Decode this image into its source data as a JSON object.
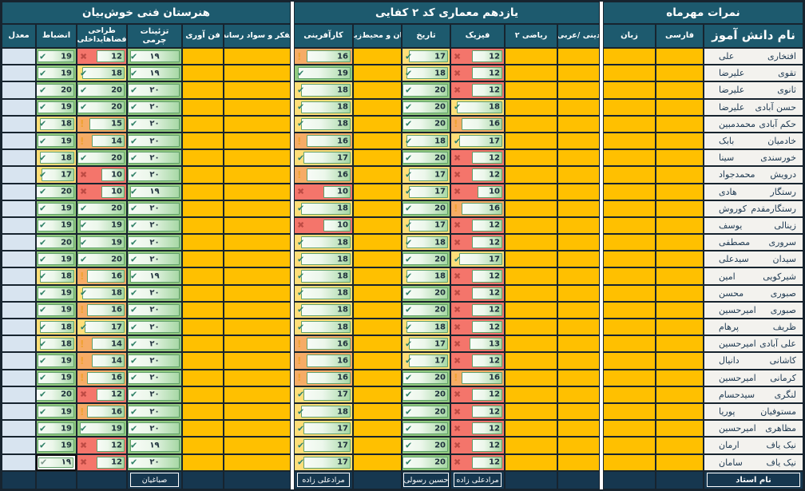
{
  "groups": {
    "right": "نمرات مهرماه",
    "middle": "یازدهم معماری کد ۲ کفایی",
    "left": "هنرستان فنی خوش‌بیان"
  },
  "columns": {
    "name": "نام دانش آموز",
    "farsi": "فارسی",
    "zaban": "زبان",
    "dini": "دینی /عربی",
    "riazi": "ریاضی ۲",
    "physics": "فیزیک",
    "tarikh": "تاریخ",
    "ensan": "انسان و محیط‌زیست",
    "karafarini": "کارآفرینی",
    "tafakor": "تفکر و سواد رسانه",
    "fanavari": "فن آوری",
    "taziinat": "تزئینات چرمی",
    "tarahi": "طراحی فضاهایداخلی",
    "enzebat": "انضباط",
    "moadel": "معدل"
  },
  "footer": {
    "name_label": "نام استاد",
    "teachers": {
      "taziinat": "صباغیان",
      "karafarini": "مرادعلی زاده",
      "tarikh": "حسین رسولی",
      "physics": "مرادعلی زاده"
    }
  },
  "icons": {
    "check": "✔",
    "warning": "!",
    "cross": "✖"
  },
  "colors": {
    "header_teal": "#1D5A6E",
    "grid_dark": "#17242F",
    "empty_subject_orange": "#FFC000",
    "band_green": "#92C97E",
    "band_yellow": "#FFDE78",
    "band_orange": "#F6AC66",
    "band_red": "#F4756B",
    "moadel_blue": "#D8E4F0"
  },
  "score_scale_max": 20,
  "selected_cell": {
    "row_index": 24,
    "column": "enzebat",
    "display": "۱۹"
  },
  "students": [
    {
      "family": "افتخاری",
      "given": "علی",
      "scores": {
        "enzebat": 19,
        "tarahi": 12,
        "taziinat": 19,
        "karafarini": 16,
        "tarikh": 17,
        "physics": 12
      }
    },
    {
      "family": "تقوی",
      "given": "علیرضا",
      "scores": {
        "enzebat": 19,
        "tarahi": 18,
        "taziinat": 19,
        "karafarini": 19,
        "tarikh": 18,
        "physics": 12
      }
    },
    {
      "family": "ثانوی",
      "given": "علیرضا",
      "scores": {
        "enzebat": 20,
        "tarahi": 20,
        "taziinat": 20,
        "karafarini": 18,
        "tarikh": 20,
        "physics": 12
      }
    },
    {
      "family": "حسن آبادی",
      "given": "علیرضا",
      "scores": {
        "enzebat": 19,
        "tarahi": 20,
        "taziinat": 20,
        "karafarini": 18,
        "tarikh": 20,
        "physics": 18
      }
    },
    {
      "family": "حکم آبادی",
      "given": "محمدمبین",
      "scores": {
        "enzebat": 18,
        "tarahi": 15,
        "taziinat": 20,
        "karafarini": 18,
        "tarikh": 20,
        "physics": 16
      }
    },
    {
      "family": "خادمیان",
      "given": "بابک",
      "scores": {
        "enzebat": 19,
        "tarahi": 14,
        "taziinat": 20,
        "karafarini": 16,
        "tarikh": 18,
        "physics": 17
      }
    },
    {
      "family": "خورسندی",
      "given": "سینا",
      "scores": {
        "enzebat": 18,
        "tarahi": 20,
        "taziinat": 20,
        "karafarini": 17,
        "tarikh": 20,
        "physics": 12
      }
    },
    {
      "family": "درویش",
      "given": "محمدجواد",
      "scores": {
        "enzebat": 17,
        "tarahi": 10,
        "taziinat": 20,
        "karafarini": 16,
        "tarikh": 17,
        "physics": 12
      }
    },
    {
      "family": "رستگار",
      "given": "هادی",
      "scores": {
        "enzebat": 20,
        "tarahi": 10,
        "taziinat": 19,
        "karafarini": 10,
        "tarikh": 17,
        "physics": 10
      }
    },
    {
      "family": "رستگارمقدم",
      "given": "کوروش",
      "scores": {
        "enzebat": 19,
        "tarahi": 20,
        "taziinat": 20,
        "karafarini": 18,
        "tarikh": 20,
        "physics": 16
      }
    },
    {
      "family": "زینالی",
      "given": "یوسف",
      "scores": {
        "enzebat": 19,
        "tarahi": 19,
        "taziinat": 20,
        "karafarini": 10,
        "tarikh": 17,
        "physics": 12
      }
    },
    {
      "family": "سروری",
      "given": "مصطفی",
      "scores": {
        "enzebat": 20,
        "tarahi": 19,
        "taziinat": 20,
        "karafarini": 18,
        "tarikh": 18,
        "physics": 12
      }
    },
    {
      "family": "سیدان",
      "given": "سیدعلی",
      "scores": {
        "enzebat": 19,
        "tarahi": 20,
        "taziinat": 20,
        "karafarini": 18,
        "tarikh": 20,
        "physics": 17
      }
    },
    {
      "family": "شیرکویی",
      "given": "امین",
      "scores": {
        "enzebat": 18,
        "tarahi": 16,
        "taziinat": 19,
        "karafarini": 18,
        "tarikh": 18,
        "physics": 12
      }
    },
    {
      "family": "صبوری",
      "given": "محسن",
      "scores": {
        "enzebat": 19,
        "tarahi": 18,
        "taziinat": 20,
        "karafarini": 18,
        "tarikh": 20,
        "physics": 12
      }
    },
    {
      "family": "صبوری",
      "given": "امیرحسین",
      "scores": {
        "enzebat": 19,
        "tarahi": 16,
        "taziinat": 20,
        "karafarini": 18,
        "tarikh": 20,
        "physics": 12
      }
    },
    {
      "family": "ظریف",
      "given": "پرهام",
      "scores": {
        "enzebat": 18,
        "tarahi": 17,
        "taziinat": 20,
        "karafarini": 18,
        "tarikh": 18,
        "physics": 12
      }
    },
    {
      "family": "علی آبادی",
      "given": "امیرحسین",
      "scores": {
        "enzebat": 18,
        "tarahi": 14,
        "taziinat": 20,
        "karafarini": 16,
        "tarikh": 17,
        "physics": 13
      }
    },
    {
      "family": "کاشانی",
      "given": "دانیال",
      "scores": {
        "enzebat": 19,
        "tarahi": 14,
        "taziinat": 20,
        "karafarini": 16,
        "tarikh": 17,
        "physics": 12
      }
    },
    {
      "family": "کرمانی",
      "given": "امیرحسین",
      "scores": {
        "enzebat": 19,
        "tarahi": 16,
        "taziinat": 20,
        "karafarini": 16,
        "tarikh": 20,
        "physics": 16
      }
    },
    {
      "family": "لنگری",
      "given": "سیدحسام",
      "scores": {
        "enzebat": 20,
        "tarahi": 12,
        "taziinat": 20,
        "karafarini": 17,
        "tarikh": 20,
        "physics": 12
      }
    },
    {
      "family": "مستوفیان",
      "given": "پوریا",
      "scores": {
        "enzebat": 19,
        "tarahi": 16,
        "taziinat": 20,
        "karafarini": 18,
        "tarikh": 20,
        "physics": 12
      }
    },
    {
      "family": "مظاهری",
      "given": "امیرحسین",
      "scores": {
        "enzebat": 19,
        "tarahi": 19,
        "taziinat": 20,
        "karafarini": 17,
        "tarikh": 20,
        "physics": 12
      }
    },
    {
      "family": "نیک یاف",
      "given": "ارمان",
      "scores": {
        "enzebat": 19,
        "tarahi": 12,
        "taziinat": 19,
        "karafarini": 17,
        "tarikh": 20,
        "physics": 12
      }
    },
    {
      "family": "نیک یاف",
      "given": "سامان",
      "scores": {
        "enzebat": 19,
        "tarahi": 12,
        "taziinat": 20,
        "karafarini": 17,
        "tarikh": 20,
        "physics": 12
      }
    }
  ]
}
